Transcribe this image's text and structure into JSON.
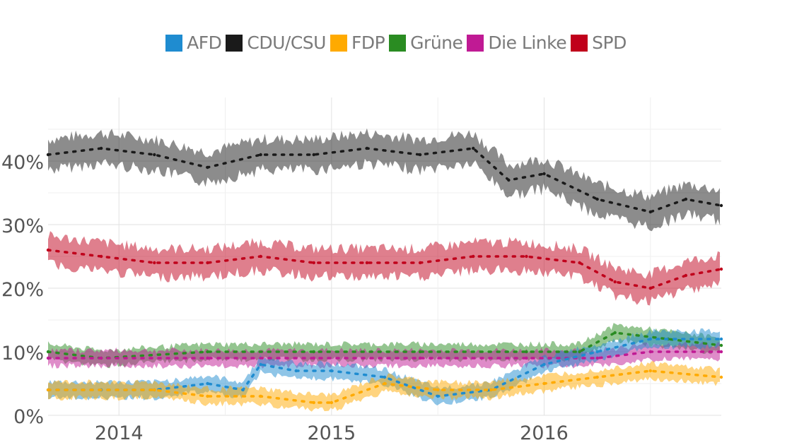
{
  "chart_data": {
    "type": "line",
    "title": "",
    "xlabel": "",
    "ylabel": "",
    "x_ticks": [
      "2014",
      "2015",
      "2016"
    ],
    "y_ticks": [
      "0%",
      "10%",
      "20%",
      "30%",
      "40%"
    ],
    "ylim": [
      0,
      50
    ],
    "xlim": [
      "2013-09",
      "2016-11"
    ],
    "grid": true,
    "legend_position": "top-center",
    "band_style": "shaded uncertainty band around each series",
    "series": [
      {
        "name": "AFD",
        "color": "#1f8cd0",
        "x": [
          "2013-09",
          "2013-12",
          "2014-03",
          "2014-06",
          "2014-08",
          "2014-09",
          "2014-11",
          "2015-01",
          "2015-04",
          "2015-07",
          "2015-10",
          "2016-01",
          "2016-04",
          "2016-07",
          "2016-11"
        ],
        "values": [
          4,
          4,
          4,
          5,
          4,
          8,
          7,
          7,
          6,
          3,
          4,
          8,
          10,
          12,
          12
        ]
      },
      {
        "name": "CDU/CSU",
        "color": "#1a1a1a",
        "x": [
          "2013-09",
          "2013-12",
          "2014-03",
          "2014-06",
          "2014-09",
          "2014-12",
          "2015-03",
          "2015-06",
          "2015-09",
          "2015-11",
          "2016-01",
          "2016-04",
          "2016-07",
          "2016-09",
          "2016-11"
        ],
        "values": [
          41,
          42,
          41,
          39,
          41,
          41,
          42,
          41,
          42,
          37,
          38,
          34,
          32,
          34,
          33
        ]
      },
      {
        "name": "FDP",
        "color": "#ffaa00",
        "x": [
          "2013-09",
          "2014-03",
          "2014-06",
          "2014-09",
          "2014-12",
          "2015-01",
          "2015-04",
          "2015-07",
          "2015-10",
          "2016-01",
          "2016-04",
          "2016-07",
          "2016-11"
        ],
        "values": [
          4,
          4,
          3,
          3,
          2,
          2,
          5,
          4,
          4,
          5,
          6,
          7,
          6
        ]
      },
      {
        "name": "Grüne",
        "color": "#2a8c22",
        "x": [
          "2013-09",
          "2013-12",
          "2014-06",
          "2014-12",
          "2015-06",
          "2015-12",
          "2016-03",
          "2016-05",
          "2016-08",
          "2016-11"
        ],
        "values": [
          10,
          9,
          10,
          10,
          10,
          10,
          10,
          13,
          12,
          11
        ]
      },
      {
        "name": "Die Linke",
        "color": "#c01a94",
        "x": [
          "2013-09",
          "2013-12",
          "2014-06",
          "2014-12",
          "2015-06",
          "2015-12",
          "2016-04",
          "2016-07",
          "2016-11"
        ],
        "values": [
          9,
          9,
          9,
          9,
          9,
          9,
          9,
          10,
          10
        ]
      },
      {
        "name": "SPD",
        "color": "#c0001b",
        "x": [
          "2013-09",
          "2013-12",
          "2014-03",
          "2014-06",
          "2014-09",
          "2014-12",
          "2015-03",
          "2015-06",
          "2015-09",
          "2015-12",
          "2016-03",
          "2016-05",
          "2016-07",
          "2016-09",
          "2016-11"
        ],
        "values": [
          26,
          25,
          24,
          24,
          25,
          24,
          24,
          24,
          25,
          25,
          24,
          21,
          20,
          22,
          23
        ]
      }
    ]
  }
}
